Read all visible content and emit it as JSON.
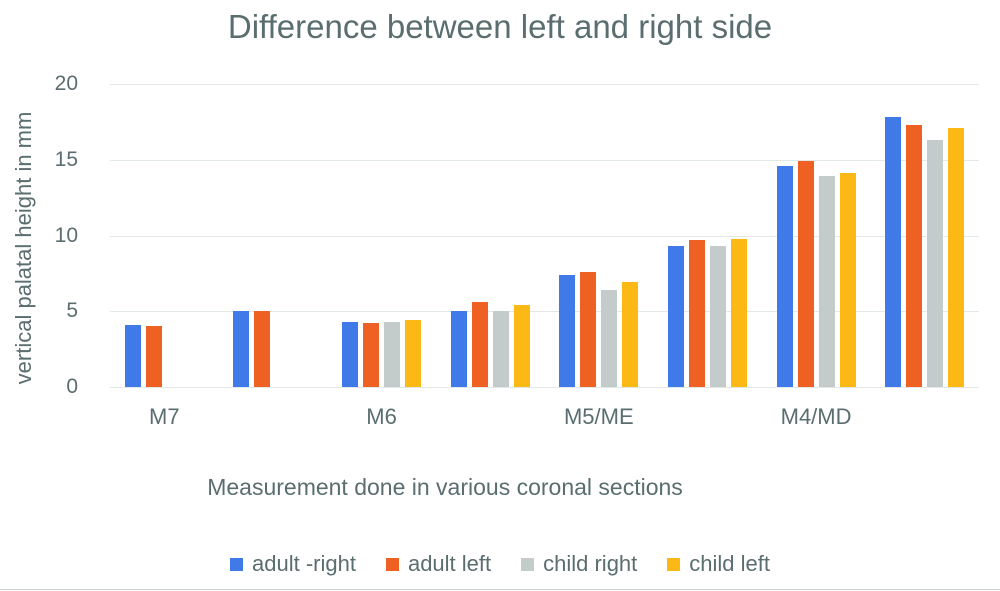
{
  "chart_data": {
    "type": "bar",
    "title": "Difference between left and right side",
    "xlabel": "Measurement done in various coronal sections",
    "ylabel": "vertical palatal height in mm",
    "ylim": [
      0,
      20
    ],
    "yticks": [
      20,
      15,
      10,
      5,
      0
    ],
    "grid": true,
    "legend_position": "bottom",
    "categories": [
      "M7",
      "",
      "M6",
      "",
      "M5/ME",
      "",
      "M4/MD",
      ""
    ],
    "series": [
      {
        "name": "adult -right",
        "color": "#3F7AE8",
        "values": [
          4.1,
          5.0,
          4.3,
          5.0,
          7.4,
          9.3,
          14.6,
          17.8
        ]
      },
      {
        "name": "adult left",
        "color": "#EF6023",
        "values": [
          4.0,
          5.0,
          4.2,
          5.6,
          7.6,
          9.7,
          14.9,
          17.3
        ]
      },
      {
        "name": "child right",
        "color": "#C3CBCB",
        "values": [
          null,
          null,
          4.3,
          5.0,
          6.4,
          9.3,
          13.9,
          16.3
        ]
      },
      {
        "name": "child left",
        "color": "#FCB814",
        "values": [
          null,
          null,
          4.4,
          5.4,
          6.9,
          9.8,
          14.1,
          17.1
        ]
      }
    ],
    "colors": {
      "text": "#5B6E6F",
      "gridline": "#E2E8E8"
    }
  }
}
